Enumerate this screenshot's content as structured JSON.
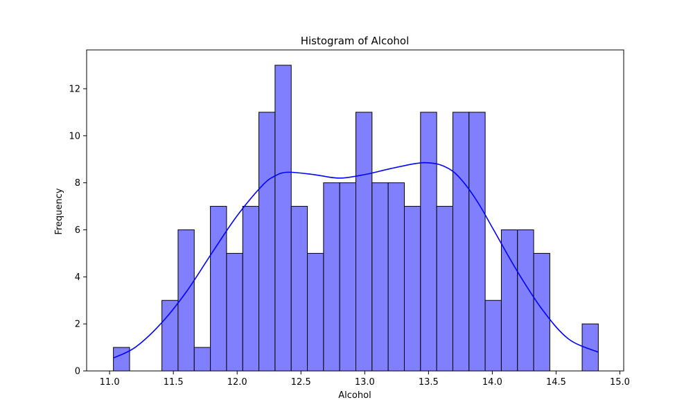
{
  "chart_data": {
    "type": "bar",
    "title": "Histogram of Alcohol",
    "xlabel": "Alcohol",
    "ylabel": "Frequency",
    "xlim": [
      10.82,
      15.03
    ],
    "ylim": [
      0,
      13.65
    ],
    "xticks": [
      "11.0",
      "11.5",
      "12.0",
      "12.5",
      "13.0",
      "13.5",
      "14.0",
      "14.5",
      "15.0"
    ],
    "xtick_values": [
      11.0,
      11.5,
      12.0,
      12.5,
      13.0,
      13.5,
      14.0,
      14.5,
      15.0
    ],
    "yticks": [
      "0",
      "2",
      "4",
      "6",
      "8",
      "10",
      "12"
    ],
    "ytick_values": [
      0,
      2,
      4,
      6,
      8,
      10,
      12
    ],
    "bin_start": 11.03,
    "bin_width": 0.1267,
    "values": [
      1,
      0,
      0,
      3,
      6,
      1,
      7,
      5,
      7,
      11,
      13,
      7,
      5,
      8,
      8,
      11,
      8,
      8,
      7,
      11,
      7,
      11,
      11,
      3,
      6,
      6,
      5,
      0,
      0,
      2
    ],
    "bar_color": "#8080ff",
    "edge_color": "#000000",
    "kde_color": "#0000ff",
    "kde_curve": {
      "x": [
        11.03,
        11.2,
        11.4,
        11.6,
        11.8,
        12.0,
        12.2,
        12.3,
        12.4,
        12.6,
        12.8,
        13.0,
        13.2,
        13.4,
        13.5,
        13.6,
        13.7,
        13.8,
        13.9,
        14.0,
        14.2,
        14.4,
        14.6,
        14.83
      ],
      "y": [
        0.55,
        1.0,
        2.0,
        3.35,
        5.0,
        6.6,
        7.9,
        8.3,
        8.45,
        8.35,
        8.2,
        8.35,
        8.6,
        8.82,
        8.85,
        8.75,
        8.45,
        7.85,
        7.05,
        6.1,
        4.2,
        2.55,
        1.35,
        0.8
      ]
    },
    "grid": false,
    "legend": "none"
  }
}
